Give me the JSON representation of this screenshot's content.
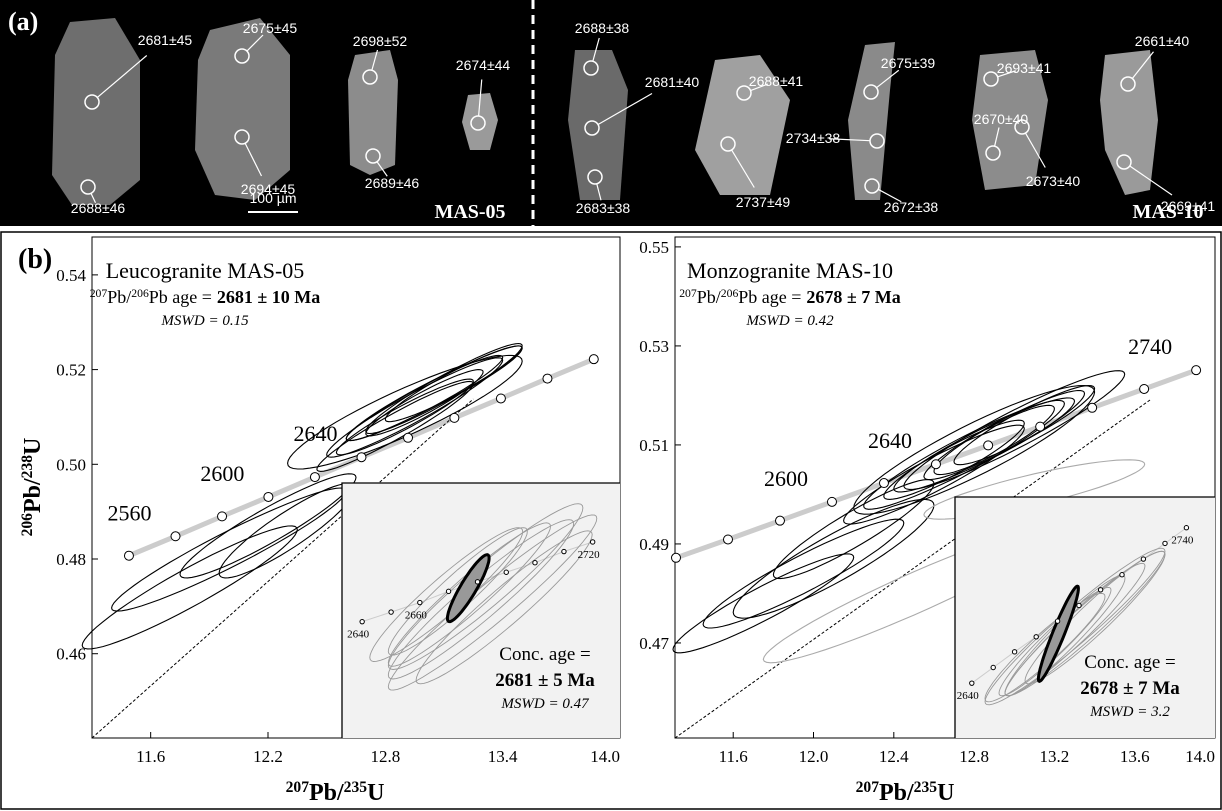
{
  "panel_a": {
    "label": "(a)",
    "scale": "100 µm",
    "samples": [
      {
        "name": "MAS-05",
        "ages": [
          "2681±45",
          "2688±46",
          "2675±45",
          "2694±45",
          "2698±52",
          "2689±46",
          "2674±44"
        ]
      },
      {
        "name": "MAS-10",
        "ages": [
          "2688±38",
          "2681±40",
          "2683±38",
          "2688±41",
          "2737±49",
          "2675±39",
          "2734±38",
          "2672±38",
          "2693±41",
          "2670±40",
          "2673±40",
          "2661±40",
          "2669±41"
        ]
      }
    ]
  },
  "panel_b_label": "(b)",
  "chart_data": [
    {
      "type": "concordia",
      "title": "Leucogranite MAS-05",
      "age_text": [
        "207",
        "Pb/",
        "206",
        "Pb age ="
      ],
      "age": "2681 ± 10 Ma",
      "mswd": "MSWD = 0.15",
      "x_label": [
        "207",
        "Pb/",
        "235",
        "U"
      ],
      "y_label": [
        "206",
        "Pb/",
        "238",
        "U"
      ],
      "xlim": [
        11.3,
        14.0
      ],
      "ylim": [
        0.4422,
        0.548
      ],
      "xticks": [
        11.6,
        12.2,
        12.8,
        13.4,
        {
          "value": 14.0,
          "label": "14.0"
        }
      ],
      "yticks": [
        0.46,
        0.48,
        {
          "value": 0.5,
          "label": "0.50"
        },
        0.52,
        0.54
      ],
      "concordia": {
        "x": [
          11.489,
          11.727,
          11.965,
          12.202,
          12.44,
          12.678,
          12.916,
          13.153,
          13.391,
          13.629,
          13.866
        ],
        "y": [
          0.4807,
          0.4848,
          0.489,
          0.4931,
          0.4973,
          0.5015,
          0.5056,
          0.5098,
          0.5139,
          0.5181,
          0.5222
        ],
        "labels": [
          null,
          "2560",
          null,
          "2600",
          null,
          "2640",
          null,
          null,
          null,
          null,
          null
        ]
      },
      "discordia": {
        "x": [
          11.3,
          13.25
        ],
        "y": [
          0.4422,
          0.5138
        ]
      },
      "ellipses": {
        "x": [
          12.95,
          13.0,
          13.05,
          12.9,
          13.1,
          13.0,
          12.85,
          13.15,
          12.2,
          12.0,
          11.8,
          12.9,
          12.3
        ],
        "y": [
          0.512,
          0.514,
          0.515,
          0.51,
          0.516,
          0.513,
          0.508,
          0.517,
          0.487,
          0.482,
          0.474,
          0.511,
          0.486
        ],
        "x_err": [
          0.45,
          0.4,
          0.45,
          0.35,
          0.4,
          0.3,
          0.4,
          0.35,
          0.45,
          0.6,
          0.55,
          0.6,
          0.35
        ],
        "y_err": [
          0.0105,
          0.009,
          0.01,
          0.008,
          0.0095,
          0.007,
          0.0095,
          0.008,
          0.011,
          0.013,
          0.013,
          0.012,
          0.01
        ],
        "rho": [
          0.95,
          0.95,
          0.96,
          0.94,
          0.95,
          0.93,
          0.95,
          0.94,
          0.93,
          0.95,
          0.94,
          0.9,
          0.9
        ],
        "colors": [
          "#000",
          "#000",
          "#000",
          "#000",
          "#000",
          "#000",
          "#000",
          "#000",
          "#000",
          "#000",
          "#000",
          "#000",
          "#000"
        ]
      },
      "inset": {
        "conc_text": "Conc. age =",
        "conc_age": "2681 ± 5 Ma",
        "mswd": "MSWD = 0.47",
        "xlim": [
          12.6,
          13.8
        ],
        "ylim": [
          0.507,
          0.523
        ],
        "concordia": {
          "x": [
            12.687,
            12.812,
            12.936,
            13.06,
            13.185,
            13.309,
            13.433,
            13.558,
            13.682
          ],
          "y": [
            0.5143,
            0.5149,
            0.5155,
            0.5162,
            0.5168,
            0.5174,
            0.518,
            0.5187,
            0.5193
          ],
          "labels": [
            "2640",
            null,
            "2660",
            null,
            null,
            null,
            null,
            null,
            "2720"
          ]
        },
        "ellipses": {
          "x": [
            13.2,
            13.15,
            13.25,
            13.1,
            13.3,
            13.22,
            13.05
          ],
          "y": [
            0.5157,
            0.516,
            0.5155,
            0.5162,
            0.5152,
            0.5165,
            0.516
          ],
          "x_err": [
            0.4,
            0.35,
            0.45,
            0.3,
            0.38,
            0.42,
            0.33
          ],
          "y_err": [
            0.005,
            0.0045,
            0.0055,
            0.004,
            0.0048,
            0.0052,
            0.0042
          ],
          "rho": [
            0.95,
            0.95,
            0.96,
            0.94,
            0.95,
            0.95,
            0.94
          ],
          "colors": [
            "#999",
            "#999",
            "#999",
            "#999",
            "#999",
            "#999",
            "#999"
          ]
        },
        "conc_ellipse": {
          "x": 13.145,
          "y": 0.5164,
          "x_err": 0.09,
          "y_err": 0.0021,
          "rho": 0.9,
          "color": "#999"
        }
      }
    },
    {
      "type": "concordia",
      "title": "Monzogranite MAS-10",
      "age_text": [
        "207",
        "Pb/",
        "206",
        "Pb age ="
      ],
      "age": "2678 ± 7 Ma",
      "mswd": "MSWD = 0.42",
      "x_label": [
        "207",
        "Pb/",
        "235",
        "U"
      ],
      "xlim": [
        11.31,
        14.0
      ],
      "ylim": [
        0.4508,
        0.552
      ],
      "xticks": [
        11.6,
        {
          "value": 12.0,
          "label": "12.0"
        },
        12.4,
        12.8,
        13.2,
        13.6,
        {
          "value": 14.0,
          "label": "14.0"
        }
      ],
      "yticks": [
        0.47,
        0.49,
        0.51,
        0.53,
        0.55
      ],
      "concordia": {
        "x": [
          11.315,
          11.574,
          11.833,
          12.092,
          12.351,
          12.61,
          12.87,
          13.129,
          13.388,
          13.647,
          13.906
        ],
        "y": [
          0.4872,
          0.4909,
          0.4947,
          0.4985,
          0.5023,
          0.5061,
          0.5099,
          0.5137,
          0.5175,
          0.5213,
          0.5251
        ],
        "labels": [
          null,
          null,
          null,
          "2600",
          null,
          "2640",
          null,
          null,
          null,
          null,
          "2740"
        ]
      },
      "discordia": {
        "x": [
          11.31,
          13.677
        ],
        "y": [
          0.4508,
          0.5191
        ]
      },
      "ellipses": {
        "x": [
          12.85,
          12.75,
          12.95,
          12.7,
          13.0,
          12.9,
          12.6,
          13.05,
          12.2,
          11.95,
          11.75,
          12.1,
          12.8,
          12.5,
          13.1
        ],
        "y": [
          0.51,
          0.508,
          0.512,
          0.507,
          0.513,
          0.511,
          0.504,
          0.514,
          0.493,
          0.484,
          0.478,
          0.487,
          0.509,
          0.48,
          0.501
        ],
        "x_err": [
          0.45,
          0.5,
          0.4,
          0.35,
          0.55,
          0.3,
          0.45,
          0.35,
          0.4,
          0.5,
          0.45,
          0.5,
          0.6,
          0.75,
          0.55
        ],
        "y_err": [
          0.0095,
          0.011,
          0.009,
          0.008,
          0.012,
          0.007,
          0.01,
          0.008,
          0.01,
          0.011,
          0.01,
          0.012,
          0.013,
          0.014,
          0.006
        ],
        "rho": [
          0.93,
          0.94,
          0.93,
          0.92,
          0.94,
          0.9,
          0.93,
          0.92,
          0.92,
          0.93,
          0.93,
          0.9,
          0.9,
          0.95,
          0.85
        ],
        "colors": [
          "#000",
          "#000",
          "#000",
          "#000",
          "#000",
          "#000",
          "#000",
          "#000",
          "#000",
          "#000",
          "#000",
          "#000",
          "#000",
          "#aaa",
          "#aaa"
        ]
      },
      "inset": {
        "conc_text": "Conc. age =",
        "conc_age": "2678 ± 7 Ma",
        "mswd": "MSWD = 3.2",
        "xlim": [
          12.7,
          14.0
        ],
        "ylim": [
          0.48,
          0.52
        ],
        "concordia": {
          "x": [
            12.784,
            12.891,
            12.998,
            13.106,
            13.213,
            13.32,
            13.428,
            13.535,
            13.642,
            13.75,
            13.857
          ],
          "y": [
            0.4891,
            0.4917,
            0.4943,
            0.4968,
            0.4994,
            0.502,
            0.5046,
            0.5071,
            0.5097,
            0.5123,
            0.5149
          ],
          "labels": [
            "2640",
            null,
            null,
            null,
            null,
            null,
            null,
            null,
            null,
            null,
            "2740"
          ]
        },
        "ellipses": {
          "x": [
            13.3,
            13.25,
            13.35,
            13.2,
            13.4,
            13.3,
            13.15
          ],
          "y": [
            0.498,
            0.497,
            0.499,
            0.496,
            0.5,
            0.4985,
            0.495
          ],
          "x_err": [
            0.35,
            0.3,
            0.4,
            0.28,
            0.35,
            0.45,
            0.3
          ],
          "y_err": [
            0.011,
            0.01,
            0.012,
            0.009,
            0.011,
            0.013,
            0.009
          ],
          "rho": [
            0.96,
            0.95,
            0.96,
            0.95,
            0.95,
            0.96,
            0.94
          ],
          "colors": [
            "#999",
            "#999",
            "#999",
            "#999",
            "#999",
            "#999",
            "#999"
          ]
        },
        "conc_ellipse": {
          "x": 13.217,
          "y": 0.4973,
          "x_err": 0.1,
          "y_err": 0.0079,
          "rho": 0.95,
          "color": "#999"
        }
      }
    }
  ]
}
